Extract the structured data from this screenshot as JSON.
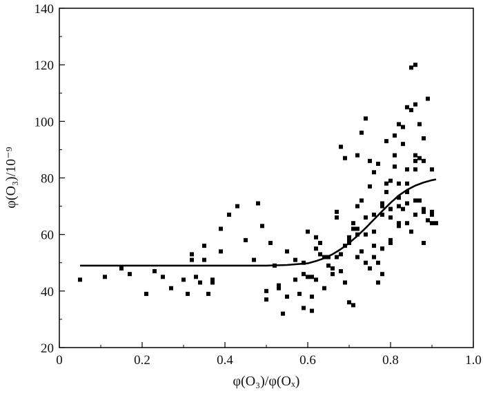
{
  "chart_data": {
    "type": "scatter",
    "title": "",
    "xlabel": "φ(O₃)/φ(Oₓ)",
    "ylabel": "φ(O₃)/10⁻⁹",
    "xlim": [
      0,
      1.0
    ],
    "ylim": [
      20,
      140
    ],
    "xticks": [
      0,
      0.2,
      0.4,
      0.6,
      0.8,
      1.0
    ],
    "xtick_labels": [
      "0",
      "0.2",
      "0.4",
      "0.6",
      "0.8",
      "1.0"
    ],
    "yticks": [
      20,
      40,
      60,
      80,
      100,
      120,
      140
    ],
    "ytick_labels": [
      "20",
      "40",
      "60",
      "80",
      "100",
      "120",
      "140"
    ],
    "grid": false,
    "legend": "none",
    "colors": {
      "points": "#000000",
      "fit_line": "#000000",
      "axes": "#000000"
    },
    "series": [
      {
        "kind": "points",
        "x": [
          0.05,
          0.11,
          0.15,
          0.17,
          0.21,
          0.23,
          0.25,
          0.27,
          0.3,
          0.31,
          0.32,
          0.32,
          0.33,
          0.34,
          0.35,
          0.35,
          0.36,
          0.37,
          0.37,
          0.39,
          0.39,
          0.41,
          0.43,
          0.45,
          0.47,
          0.48,
          0.49,
          0.5,
          0.5,
          0.52,
          0.53,
          0.54,
          0.55,
          0.57,
          0.59,
          0.59,
          0.6,
          0.61,
          0.61,
          0.62,
          0.62,
          0.63,
          0.64,
          0.65,
          0.66,
          0.67,
          0.67,
          0.68,
          0.68,
          0.69,
          0.69,
          0.7,
          0.7,
          0.71,
          0.71,
          0.72,
          0.72,
          0.73,
          0.73,
          0.74,
          0.74,
          0.75,
          0.75,
          0.76,
          0.76,
          0.77,
          0.77,
          0.78,
          0.78,
          0.79,
          0.79,
          0.8,
          0.8,
          0.81,
          0.81,
          0.82,
          0.82,
          0.83,
          0.83,
          0.84,
          0.84,
          0.85,
          0.85,
          0.86,
          0.86,
          0.87,
          0.87,
          0.88,
          0.88,
          0.89,
          0.89,
          0.9,
          0.9,
          0.91,
          0.58,
          0.6,
          0.62,
          0.64,
          0.66,
          0.68,
          0.7,
          0.72,
          0.74,
          0.76,
          0.78,
          0.8,
          0.82,
          0.84,
          0.86,
          0.88,
          0.9,
          0.72,
          0.74,
          0.76,
          0.78,
          0.8,
          0.82,
          0.84,
          0.86,
          0.88,
          0.78,
          0.8,
          0.82,
          0.84,
          0.86,
          0.85,
          0.86,
          0.87,
          0.83,
          0.81,
          0.79,
          0.77,
          0.75,
          0.73,
          0.71,
          0.69,
          0.67,
          0.65,
          0.63,
          0.61,
          0.59,
          0.57,
          0.55,
          0.53,
          0.51,
          0.7,
          0.72,
          0.74,
          0.76,
          0.78,
          0.8,
          0.82,
          0.84,
          0.86,
          0.88,
          0.9
        ],
        "y": [
          44,
          45,
          48,
          46,
          39,
          47,
          45,
          41,
          44,
          39,
          51,
          53,
          45,
          43,
          51,
          56,
          39,
          44,
          43,
          62,
          54,
          67,
          70,
          58,
          51,
          71,
          63,
          40,
          37,
          49,
          41,
          32,
          54,
          51,
          46,
          34,
          45,
          38,
          33,
          59,
          55,
          57,
          41,
          52,
          46,
          68,
          66,
          91,
          53,
          87,
          43,
          36,
          59,
          62,
          35,
          70,
          52,
          96,
          54,
          101,
          60,
          77,
          48,
          82,
          61,
          43,
          50,
          55,
          71,
          75,
          93,
          58,
          79,
          84,
          95,
          99,
          64,
          69,
          92,
          75,
          105,
          104,
          61,
          120,
          86,
          99,
          72,
          94,
          68,
          108,
          65,
          67,
          64,
          64,
          39,
          61,
          44,
          52,
          48,
          47,
          57,
          60,
          66,
          56,
          46,
          66,
          73,
          78,
          83,
          86,
          83,
          88,
          50,
          52,
          55,
          57,
          63,
          64,
          67,
          57,
          67,
          69,
          78,
          83,
          88,
          119,
          106,
          87,
          98,
          88,
          78,
          85,
          86,
          72,
          64,
          56,
          52,
          49,
          53,
          45,
          50,
          44,
          38,
          42,
          57,
          58,
          62,
          66,
          67,
          70,
          69,
          70,
          71,
          72,
          69,
          68
        ]
      },
      {
        "kind": "fit_line",
        "x": [
          0.05,
          0.1,
          0.15,
          0.2,
          0.25,
          0.3,
          0.35,
          0.4,
          0.45,
          0.5,
          0.55,
          0.6,
          0.62,
          0.64,
          0.66,
          0.68,
          0.7,
          0.72,
          0.74,
          0.76,
          0.78,
          0.8,
          0.82,
          0.84,
          0.86,
          0.88,
          0.9,
          0.91
        ],
        "y": [
          49,
          49,
          49,
          49,
          49,
          49,
          49,
          49,
          49,
          49,
          49.2,
          49.8,
          50.6,
          51.6,
          53,
          54.8,
          57,
          59.5,
          62.3,
          65.3,
          68.3,
          71.2,
          73.8,
          75.8,
          77.3,
          78.4,
          79.2,
          79.5
        ]
      }
    ]
  }
}
